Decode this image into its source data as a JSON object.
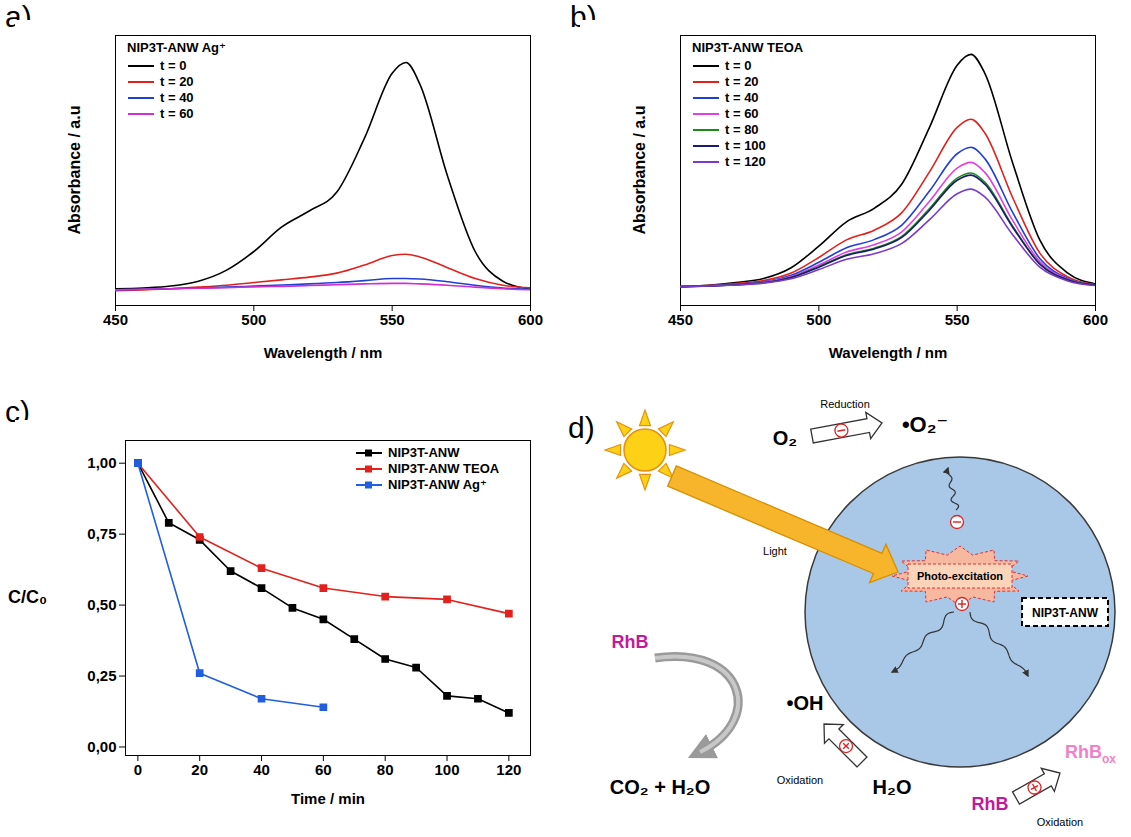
{
  "chart_data": [
    {
      "type": "line",
      "panel": "a)",
      "title": "NIP3T-ANW Ag⁺",
      "xlabel": "Wavelength / nm",
      "ylabel": "Absorbance / a.u",
      "xlim": [
        450,
        600
      ],
      "xticks": [
        450,
        500,
        550,
        600
      ],
      "ylim": [
        0,
        1
      ],
      "tick_labels": "x",
      "legend": "upper left",
      "x": [
        450,
        460,
        470,
        480,
        490,
        500,
        510,
        520,
        530,
        540,
        550,
        555,
        560,
        570,
        580,
        590,
        600
      ],
      "series": [
        {
          "name": "t = 0",
          "color": "#000000",
          "values": [
            0.062,
            0.065,
            0.072,
            0.09,
            0.13,
            0.2,
            0.29,
            0.35,
            0.42,
            0.62,
            0.86,
            0.9,
            0.82,
            0.48,
            0.2,
            0.09,
            0.06
          ]
        },
        {
          "name": "t = 20",
          "color": "#e3211c",
          "values": [
            0.055,
            0.058,
            0.062,
            0.068,
            0.075,
            0.085,
            0.095,
            0.105,
            0.12,
            0.15,
            0.185,
            0.19,
            0.18,
            0.14,
            0.1,
            0.075,
            0.065
          ]
        },
        {
          "name": "t = 40",
          "color": "#1f3fd6",
          "values": [
            0.058,
            0.06,
            0.062,
            0.065,
            0.068,
            0.072,
            0.076,
            0.08,
            0.085,
            0.092,
            0.1,
            0.1,
            0.098,
            0.088,
            0.075,
            0.065,
            0.06
          ]
        },
        {
          "name": "t = 60",
          "color": "#d030d0",
          "values": [
            0.058,
            0.06,
            0.062,
            0.064,
            0.066,
            0.069,
            0.071,
            0.074,
            0.077,
            0.08,
            0.082,
            0.082,
            0.08,
            0.075,
            0.068,
            0.062,
            0.058
          ]
        }
      ]
    },
    {
      "type": "line",
      "panel": "b)",
      "title": "NIP3T-ANW TEOA",
      "xlabel": "Wavelength / nm",
      "ylabel": "Absorbance / a.u",
      "xlim": [
        450,
        600
      ],
      "xticks": [
        450,
        500,
        550,
        600
      ],
      "ylim": [
        0,
        1
      ],
      "tick_labels": "x",
      "legend": "upper left",
      "x": [
        450,
        460,
        470,
        480,
        490,
        500,
        510,
        520,
        530,
        540,
        550,
        555,
        560,
        570,
        580,
        590,
        600
      ],
      "series": [
        {
          "name": "t = 0",
          "color": "#000000",
          "values": [
            0.07,
            0.075,
            0.085,
            0.1,
            0.14,
            0.22,
            0.31,
            0.36,
            0.45,
            0.66,
            0.89,
            0.93,
            0.86,
            0.53,
            0.24,
            0.12,
            0.08
          ]
        },
        {
          "name": "t = 20",
          "color": "#e3211c",
          "values": [
            0.07,
            0.074,
            0.081,
            0.092,
            0.12,
            0.178,
            0.243,
            0.279,
            0.344,
            0.495,
            0.66,
            0.69,
            0.639,
            0.401,
            0.192,
            0.106,
            0.077
          ]
        },
        {
          "name": "t = 40",
          "color": "#1f3fd6",
          "values": [
            0.07,
            0.073,
            0.079,
            0.088,
            0.112,
            0.16,
            0.214,
            0.244,
            0.298,
            0.424,
            0.562,
            0.586,
            0.544,
            0.346,
            0.172,
            0.1,
            0.076
          ]
        },
        {
          "name": "t = 60",
          "color": "#e040e0",
          "values": [
            0.07,
            0.073,
            0.078,
            0.086,
            0.107,
            0.15,
            0.198,
            0.225,
            0.273,
            0.386,
            0.509,
            0.53,
            0.493,
            0.316,
            0.161,
            0.097,
            0.075
          ]
        },
        {
          "name": "t = 80",
          "color": "#1a8a1a",
          "values": [
            0.07,
            0.072,
            0.077,
            0.085,
            0.104,
            0.144,
            0.188,
            0.212,
            0.256,
            0.359,
            0.472,
            0.491,
            0.457,
            0.295,
            0.153,
            0.095,
            0.075
          ]
        },
        {
          "name": "t = 100",
          "color": "#1a1a6e",
          "values": [
            0.07,
            0.072,
            0.077,
            0.084,
            0.104,
            0.142,
            0.185,
            0.209,
            0.252,
            0.353,
            0.464,
            0.483,
            0.449,
            0.291,
            0.152,
            0.094,
            0.075
          ]
        },
        {
          "name": "t = 120",
          "color": "#7a3ac8",
          "values": [
            0.07,
            0.072,
            0.076,
            0.083,
            0.099,
            0.133,
            0.171,
            0.192,
            0.23,
            0.318,
            0.414,
            0.431,
            0.402,
            0.263,
            0.141,
            0.091,
            0.074
          ]
        }
      ]
    },
    {
      "type": "line",
      "panel": "c)",
      "xlabel": "Time / min",
      "ylabel": "C/C₀",
      "xlim": [
        -4,
        127
      ],
      "xticks": [
        0,
        20,
        40,
        60,
        80,
        100,
        120
      ],
      "ylim": [
        -0.03,
        1.08
      ],
      "yticks": [
        {
          "value": 0,
          "label": "0,00"
        },
        {
          "value": 0.25,
          "label": "0,25"
        },
        {
          "value": 0.5,
          "label": "0,50"
        },
        {
          "value": 0.75,
          "label": "0,75"
        },
        {
          "value": 1,
          "label": "1,00"
        }
      ],
      "legend": "upper right",
      "series": [
        {
          "name": "NIP3T-ANW",
          "color": "#000000",
          "marker": "square",
          "x": [
            0,
            10,
            20,
            30,
            40,
            50,
            60,
            70,
            80,
            90,
            100,
            110,
            120
          ],
          "values": [
            1.0,
            0.79,
            0.73,
            0.62,
            0.56,
            0.49,
            0.45,
            0.38,
            0.31,
            0.28,
            0.18,
            0.17,
            0.12
          ]
        },
        {
          "name": "NIP3T-ANW TEOA",
          "color": "#e3211c",
          "marker": "square",
          "x": [
            0,
            20,
            40,
            60,
            80,
            100,
            120
          ],
          "values": [
            1.0,
            0.74,
            0.63,
            0.56,
            0.53,
            0.52,
            0.47
          ]
        },
        {
          "name": "NIP3T-ANW Ag⁺",
          "color": "#1f5fe0",
          "marker": "square",
          "x": [
            0,
            20,
            40,
            60
          ],
          "values": [
            1.0,
            0.26,
            0.17,
            0.14
          ]
        }
      ]
    }
  ],
  "diagram": {
    "panel": "d)",
    "reduction": "Reduction",
    "oxygen": "O₂",
    "superoxide": "•O₂⁻",
    "light": "Light",
    "photo_excitation": "Photo-excitation",
    "material": "NIP3T-ANW",
    "dye": "RhB",
    "hydroxyl": "•OH",
    "oxidation": "Oxidation",
    "water": "H₂O",
    "products": "CO₂ + H₂O",
    "dye_oxidized": {
      "text": "RhB",
      "subscript": "ox"
    }
  }
}
